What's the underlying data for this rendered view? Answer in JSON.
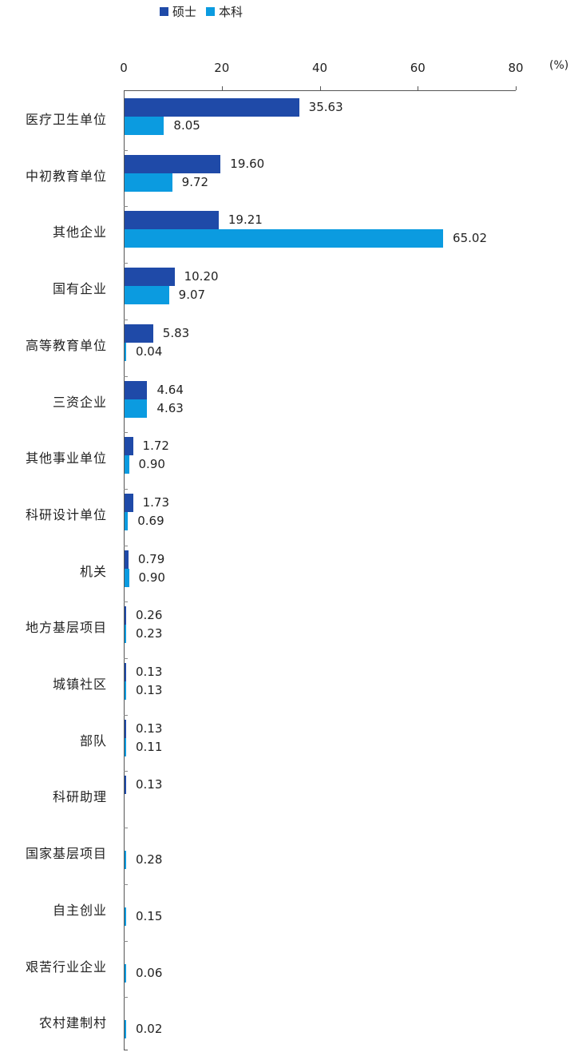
{
  "chart_data": {
    "type": "bar",
    "orientation": "horizontal",
    "title": "",
    "xlabel": "",
    "ylabel": "",
    "unit": "(%)",
    "xlim": [
      0,
      80
    ],
    "x_ticks": [
      "0",
      "20",
      "40",
      "60",
      "80"
    ],
    "axis_position": "top",
    "grid": false,
    "legend_position": "top",
    "colors": {
      "硕士": "#1f4aa8",
      "本科": "#0b9be0"
    },
    "categories": [
      "医疗卫生单位",
      "中初教育单位",
      "其他企业",
      "国有企业",
      "高等教育单位",
      "三资企业",
      "其他事业单位",
      "科研设计单位",
      "机关",
      "地方基层项目",
      "城镇社区",
      "部队",
      "科研助理",
      "国家基层项目",
      "自主创业",
      "艰苦行业企业",
      "农村建制村"
    ],
    "series": [
      {
        "name": "硕士",
        "values": [
          35.63,
          19.6,
          19.21,
          10.2,
          5.83,
          4.64,
          1.72,
          1.73,
          0.79,
          0.26,
          0.13,
          0.13,
          0.13,
          null,
          null,
          null,
          null
        ],
        "labels": [
          "35.63",
          "19.60",
          "19.21",
          "10.20",
          "5.83",
          "4.64",
          "1.72",
          "1.73",
          "0.79",
          "0.26",
          "0.13",
          "0.13",
          "0.13",
          "",
          "",
          "",
          ""
        ]
      },
      {
        "name": "本科",
        "values": [
          8.05,
          9.72,
          65.02,
          9.07,
          0.04,
          4.63,
          0.9,
          0.69,
          0.9,
          0.23,
          0.13,
          0.11,
          null,
          0.28,
          0.15,
          0.06,
          0.02
        ],
        "labels": [
          "8.05",
          "9.72",
          "65.02",
          "9.07",
          "0.04",
          "4.63",
          "0.90",
          "0.69",
          "0.90",
          "0.23",
          "0.13",
          "0.11",
          "",
          "0.28",
          "0.15",
          "0.06",
          "0.02"
        ]
      }
    ]
  },
  "legend": {
    "items": [
      {
        "label": "硕士",
        "color": "#1f4aa8"
      },
      {
        "label": "本科",
        "color": "#0b9be0"
      }
    ]
  }
}
